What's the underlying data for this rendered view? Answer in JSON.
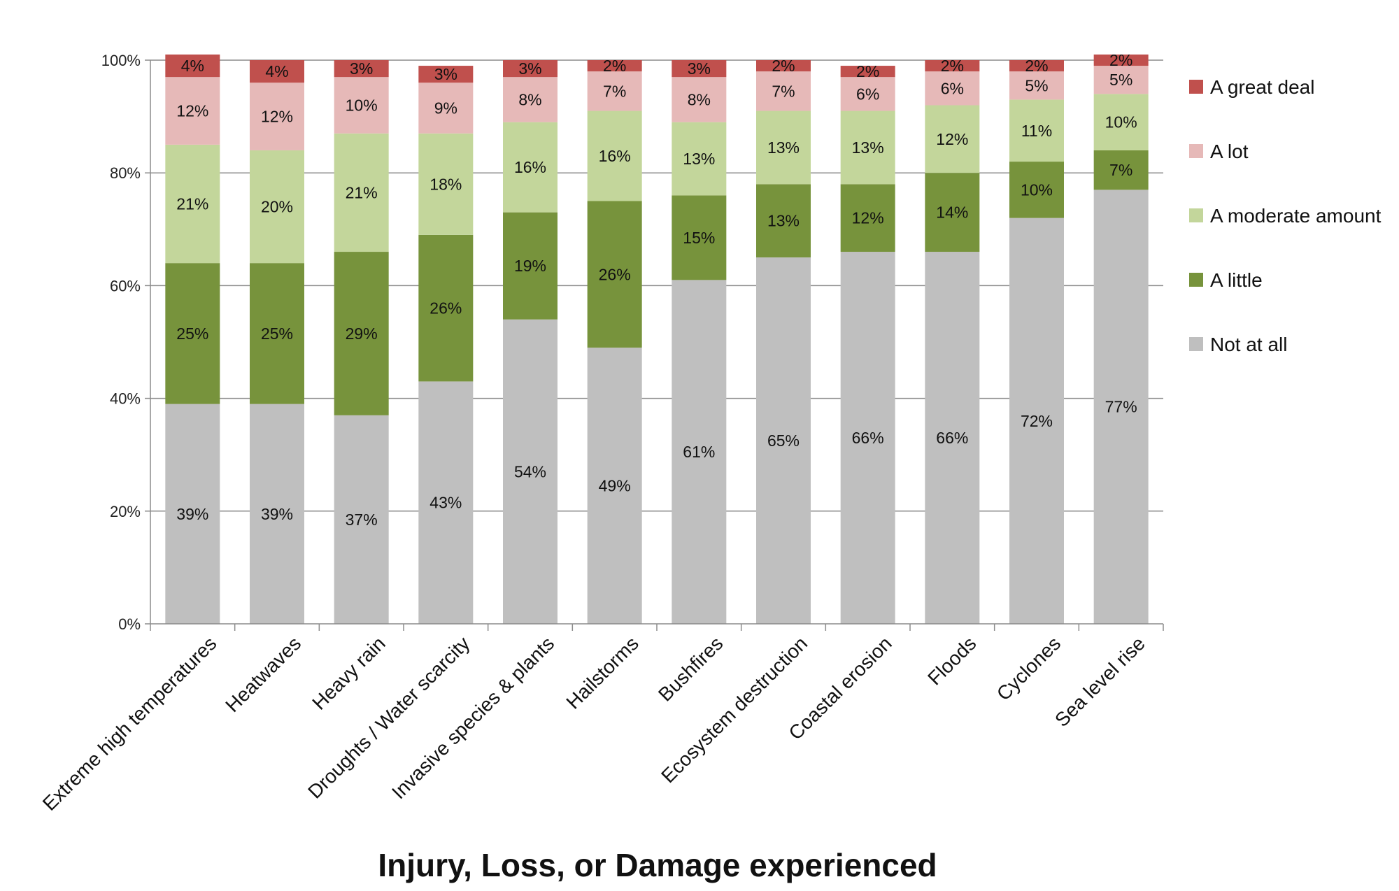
{
  "chart_data": {
    "type": "bar",
    "stacked": true,
    "title": "",
    "xlabel": "Injury, Loss, or Damage experienced",
    "ylabel": "",
    "ylim": [
      0,
      100
    ],
    "y_ticks": [
      "0%",
      "20%",
      "40%",
      "60%",
      "80%",
      "100%"
    ],
    "y_tick_values": [
      0,
      20,
      40,
      60,
      80,
      100
    ],
    "grid": true,
    "legend_position": "right",
    "categories": [
      "Extreme high temperatures",
      "Heatwaves",
      "Heavy rain",
      "Droughts / Water scarcity",
      "Invasive species & plants",
      "Hailstorms",
      "Bushfires",
      "Ecosystem destruction",
      "Coastal erosion",
      "Floods",
      "Cyclones",
      "Sea level rise"
    ],
    "series": [
      {
        "name": "Not at all",
        "color": "#bfbfbf",
        "values": [
          39,
          39,
          37,
          43,
          54,
          49,
          61,
          65,
          66,
          66,
          72,
          77
        ],
        "labels": [
          "39%",
          "39%",
          "37%",
          "43%",
          "54%",
          "49%",
          "61%",
          "65%",
          "66%",
          "66%",
          "72%",
          "77%"
        ]
      },
      {
        "name": "A little",
        "color": "#77933c",
        "values": [
          25,
          25,
          29,
          26,
          19,
          26,
          15,
          13,
          12,
          14,
          10,
          7
        ],
        "labels": [
          "25%",
          "25%",
          "29%",
          "26%",
          "19%",
          "26%",
          "15%",
          "13%",
          "12%",
          "14%",
          "10%",
          "7%"
        ]
      },
      {
        "name": "A moderate amount",
        "color": "#c3d69b",
        "values": [
          21,
          20,
          21,
          18,
          16,
          16,
          13,
          13,
          13,
          12,
          11,
          10
        ],
        "labels": [
          "21%",
          "20%",
          "21%",
          "18%",
          "16%",
          "16%",
          "13%",
          "13%",
          "13%",
          "12%",
          "11%",
          "10%"
        ]
      },
      {
        "name": "A lot",
        "color": "#e6b9b8",
        "values": [
          12,
          12,
          10,
          9,
          8,
          7,
          8,
          7,
          6,
          6,
          5,
          5
        ],
        "labels": [
          "12%",
          "12%",
          "10%",
          "9%",
          "8%",
          "7%",
          "8%",
          "7%",
          "6%",
          "6%",
          "5%",
          "5%"
        ]
      },
      {
        "name": "A great deal",
        "color": "#c0504d",
        "values": [
          4,
          4,
          3,
          3,
          3,
          2,
          3,
          2,
          2,
          2,
          2,
          2
        ],
        "labels": [
          "4%",
          "4%",
          "3%",
          "3%",
          "3%",
          "2%",
          "3%",
          "2%",
          "2%",
          "2%",
          "2%",
          "2%"
        ]
      }
    ],
    "legend_order": [
      "A great deal",
      "A lot",
      "A moderate amount",
      "A little",
      "Not at all"
    ]
  }
}
